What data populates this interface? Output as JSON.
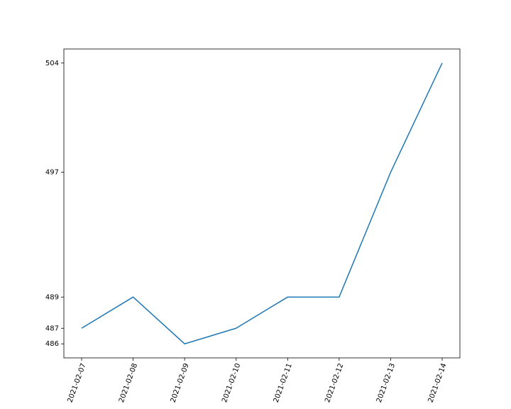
{
  "chart_data": {
    "type": "line",
    "title": "",
    "xlabel": "",
    "ylabel": "",
    "x": [
      "2021-02-07",
      "2021-02-08",
      "2021-02-09",
      "2021-02-10",
      "2021-02-11",
      "2021-02-12",
      "2021-02-13",
      "2021-02-14"
    ],
    "series": [
      {
        "values": [
          487,
          489,
          486,
          487,
          489,
          489,
          497,
          504
        ],
        "color": "#1f77b4"
      }
    ],
    "yticks": [
      486,
      487,
      489,
      497,
      504
    ],
    "ylim": [
      485.1,
      504.9
    ],
    "x_tick_rotation_deg": 70,
    "grid": false,
    "legend": "none"
  }
}
